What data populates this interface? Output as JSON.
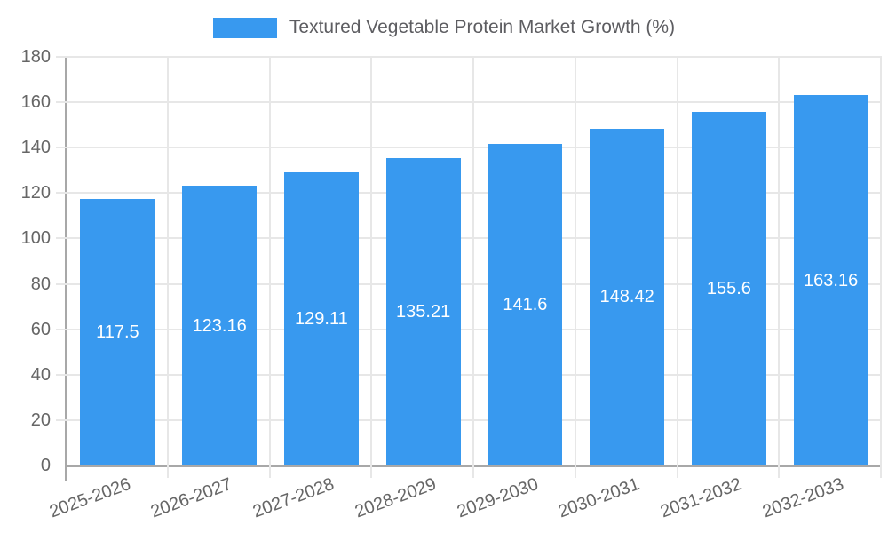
{
  "legend": {
    "label": "Textured Vegetable Protein Market Growth (%)"
  },
  "chart_data": {
    "type": "bar",
    "title": "Textured Vegetable Protein Market Growth (%)",
    "categories": [
      "2025-2026",
      "2026-2027",
      "2027-2028",
      "2028-2029",
      "2029-2030",
      "2030-2031",
      "2031-2032",
      "2032-2033"
    ],
    "series": [
      {
        "name": "Textured Vegetable Protein Market Growth (%)",
        "values": [
          117.5,
          123.16,
          129.11,
          135.21,
          141.6,
          148.42,
          155.6,
          163.16
        ]
      }
    ],
    "value_labels": [
      117.5,
      123.16,
      129.11,
      135.21,
      141.6,
      148.42,
      155.6,
      163.16
    ],
    "xlabel": "",
    "ylabel": "",
    "ylim": [
      0,
      180
    ],
    "y_ticks": [
      0,
      20,
      40,
      60,
      80,
      100,
      120,
      140,
      160,
      180
    ],
    "grid": true,
    "legend_position": "top",
    "value_label_position": "inside-middle",
    "x_label_rotation_deg": -20
  },
  "colors": {
    "bar": "#3899ef",
    "grid": "#e7e7e7",
    "axis": "#a8a8a8",
    "tick_text": "#666666",
    "value_label_text": "#ffffff",
    "legend_text": "#5d5d61"
  }
}
